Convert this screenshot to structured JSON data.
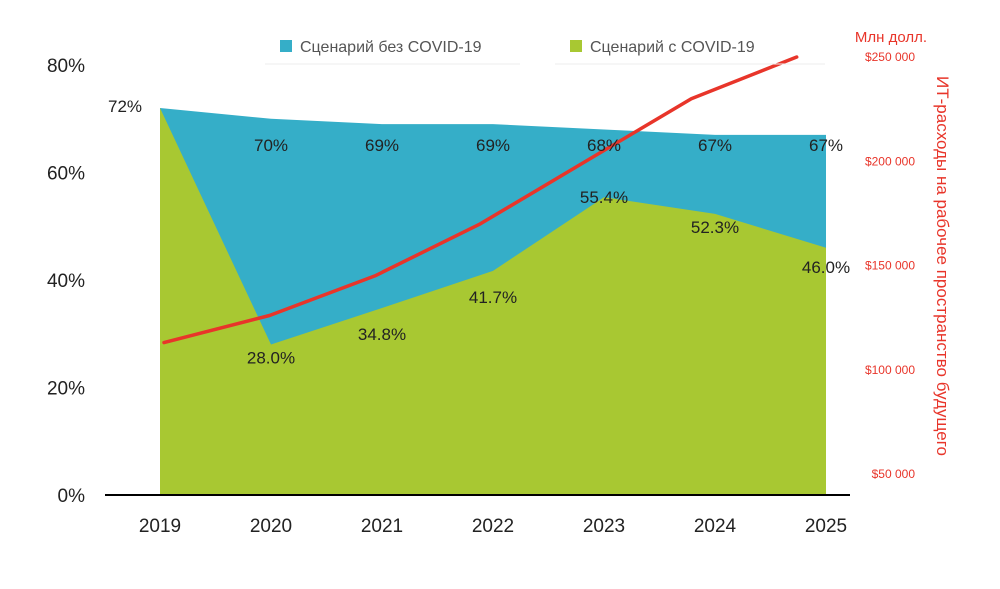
{
  "chart_data": {
    "type": "area",
    "x": [
      "2019",
      "2020",
      "2021",
      "2022",
      "2023",
      "2024",
      "2025"
    ],
    "series": [
      {
        "name": "Сценарий без COVID-19",
        "kind": "area",
        "axis": "left",
        "color": "#35aec8",
        "values": [
          72,
          70,
          69,
          69,
          68,
          67,
          67
        ],
        "labels": [
          "72%",
          "70%",
          "69%",
          "69%",
          "68%",
          "67%",
          "67%"
        ]
      },
      {
        "name": "Сценарий с COVID-19",
        "kind": "area",
        "axis": "left",
        "color": "#a8c832",
        "values": [
          72,
          28.0,
          34.8,
          41.7,
          55.4,
          52.3,
          46.0
        ],
        "labels": [
          "",
          "28.0%",
          "34.8%",
          "41.7%",
          "55.4%",
          "52.3%",
          "46.0%"
        ]
      },
      {
        "kind": "line",
        "axis": "right",
        "color": "#e8352a",
        "values": [
          113000,
          126000,
          145000,
          170000,
          200000,
          230000,
          250000
        ],
        "x_extent": [
          2019,
          2024.7
        ]
      }
    ],
    "y_left": {
      "ticks": [
        "0%",
        "20%",
        "40%",
        "60%",
        "80%"
      ],
      "tick_values": [
        0,
        20,
        40,
        60,
        80
      ],
      "ylim": [
        0,
        80
      ]
    },
    "y_right": {
      "unit": "Млн долл.",
      "ylabel": "ИТ-расходы на рабочее пространство будущего",
      "ticks": [
        "$50 000",
        "$100 000",
        "$150 000",
        "$200 000",
        "$250 000"
      ],
      "tick_values": [
        50000,
        100000,
        150000,
        200000,
        250000
      ]
    },
    "legend": {
      "position": "top",
      "entries": [
        "Сценарий без COVID-19",
        "Сценарий с COVID-19"
      ]
    },
    "grid": false
  }
}
